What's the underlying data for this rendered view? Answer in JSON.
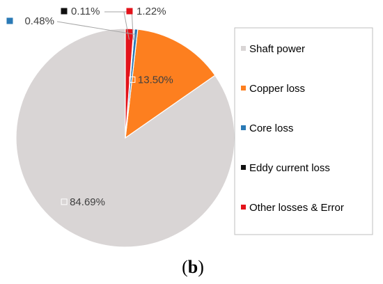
{
  "chart_data": {
    "type": "pie",
    "categories": [
      "Shaft power",
      "Copper loss",
      "Core loss",
      "Eddy current loss",
      "Other losses & Error"
    ],
    "values": [
      84.69,
      13.5,
      0.48,
      0.11,
      1.22
    ],
    "value_labels": [
      "84.69%",
      "13.50%",
      "0.48%",
      "0.11%",
      "1.22%"
    ],
    "colors": [
      "#d9d5d5",
      "#fd7f1f",
      "#2a7ab6",
      "#111111",
      "#e3131b"
    ],
    "start_angle_deg": 0,
    "direction": "counterclockwise",
    "legend_position": "right",
    "title": ""
  },
  "caption": {
    "open_paren": "(",
    "letter": "b",
    "close_paren": ")"
  }
}
